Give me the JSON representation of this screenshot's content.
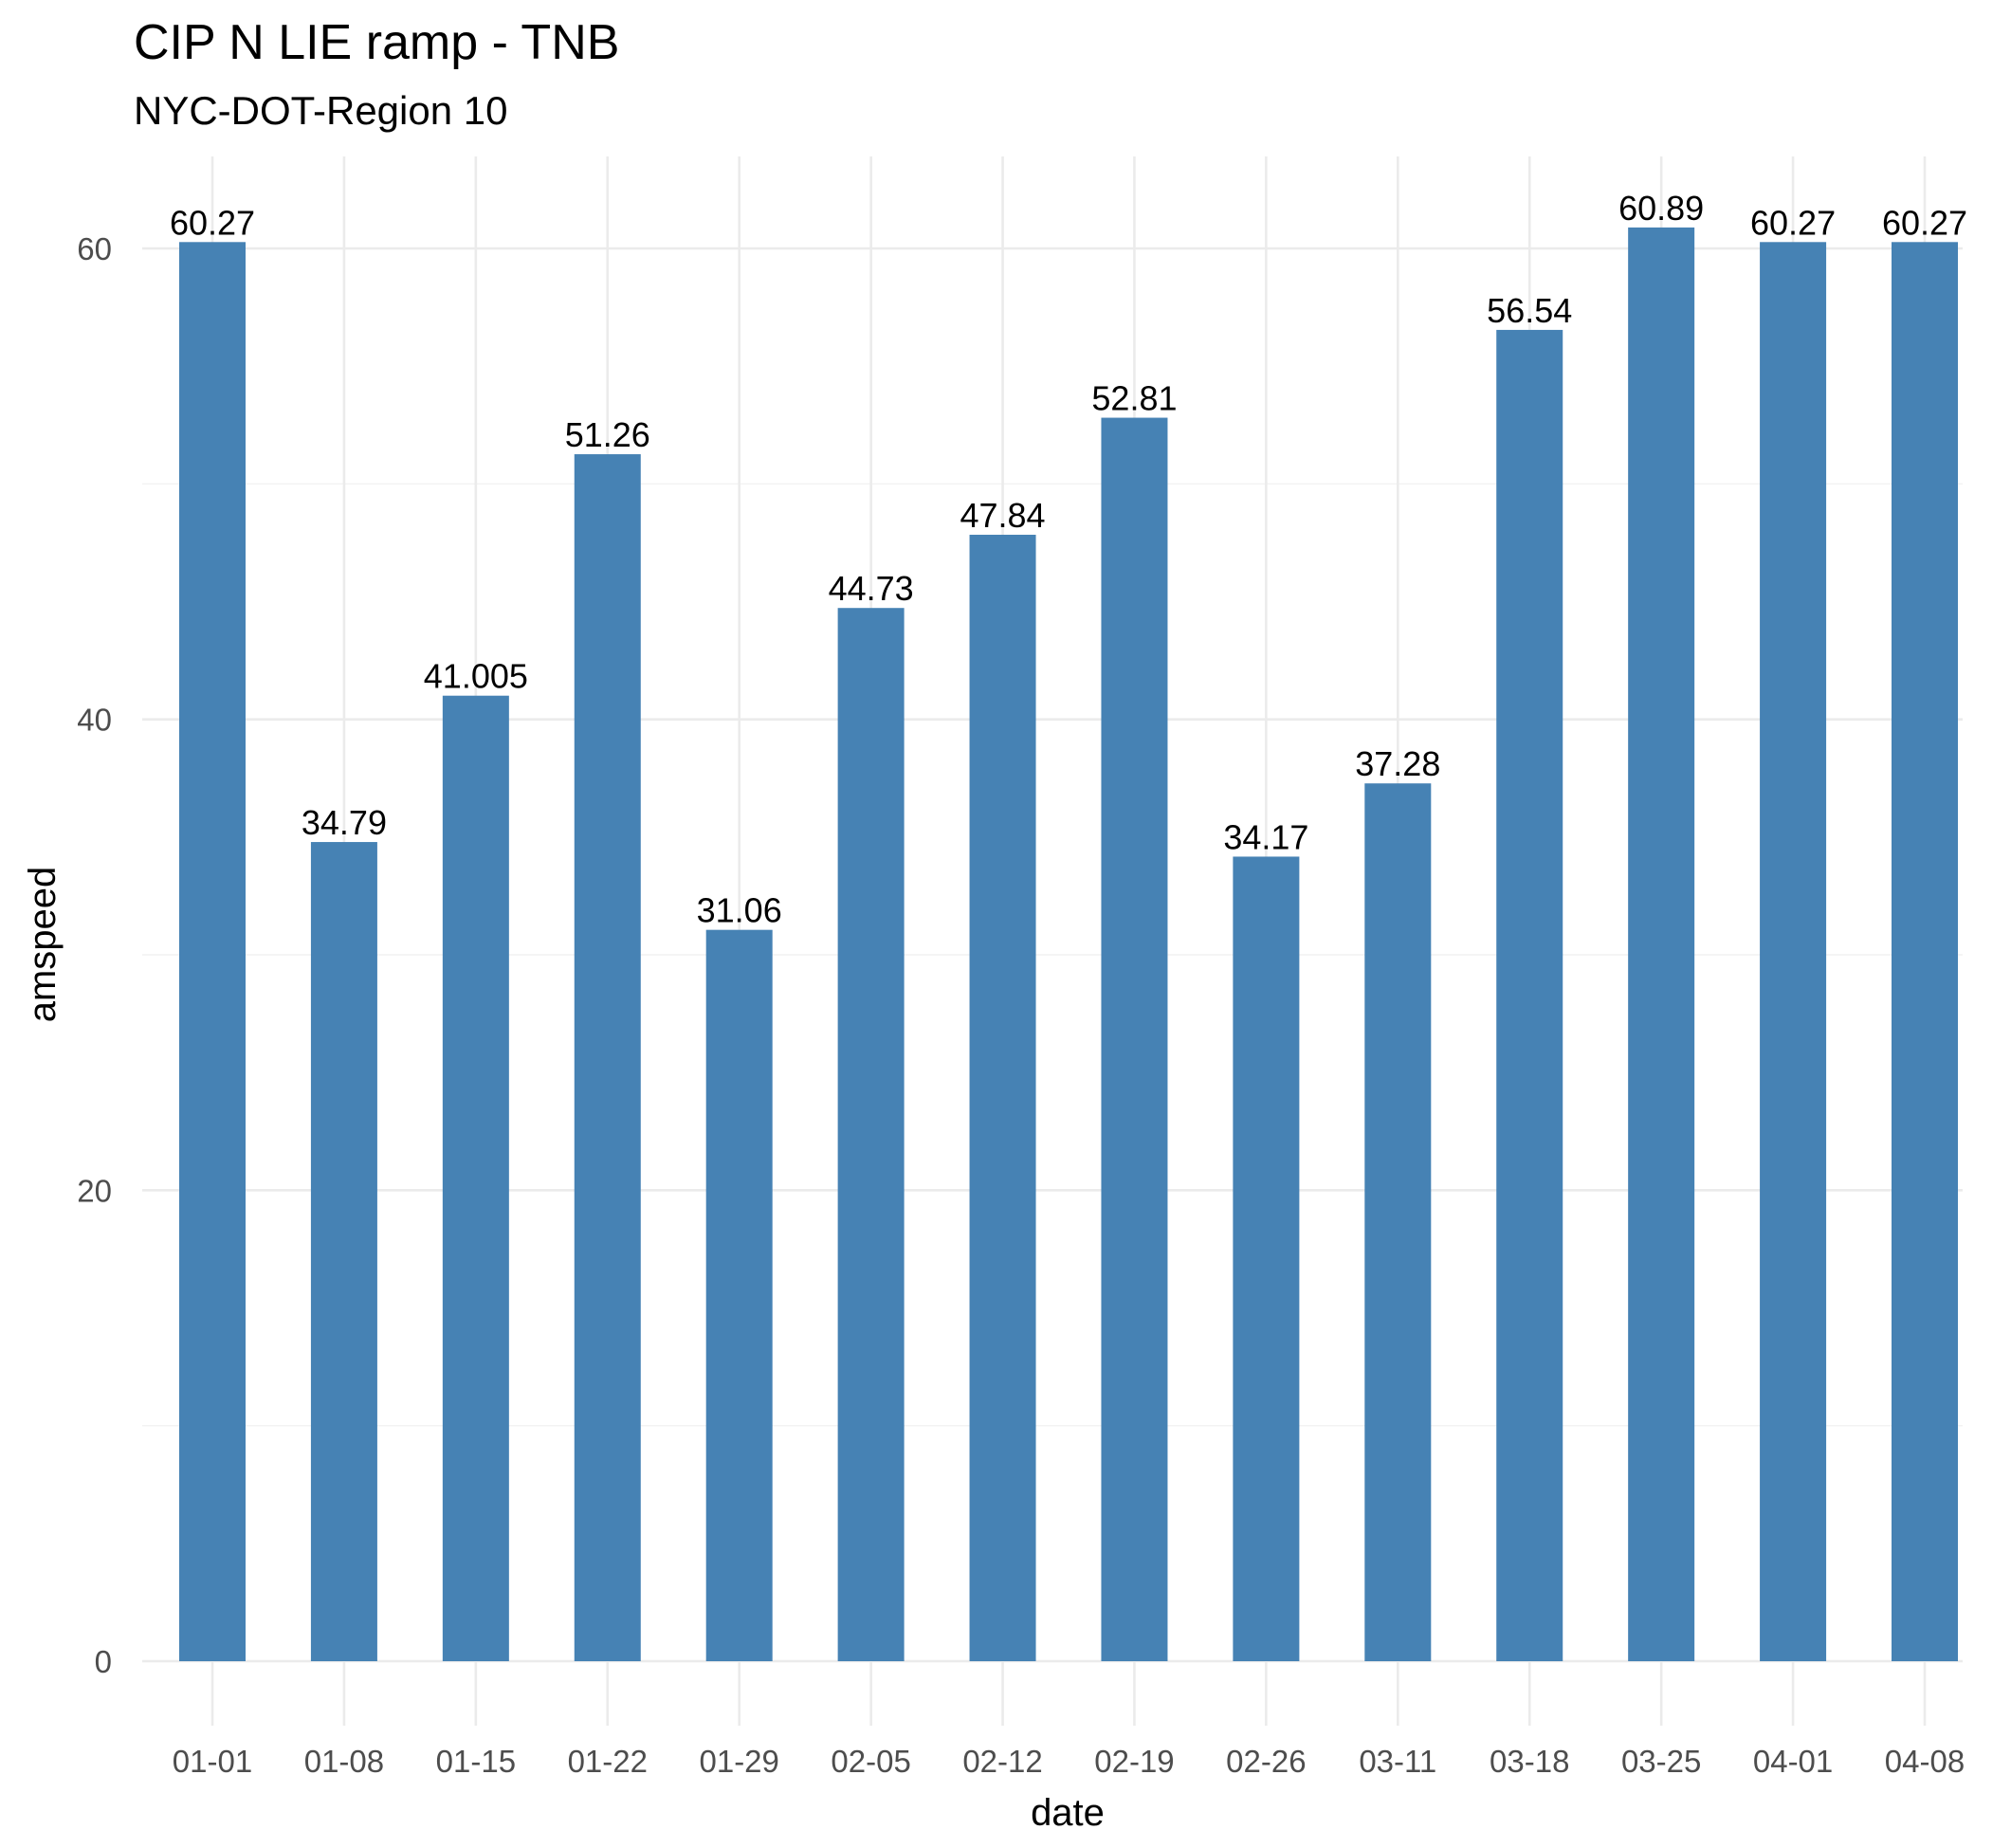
{
  "chart_data": {
    "type": "bar",
    "title": "CIP N LIE ramp - TNB",
    "subtitle": "NYC-DOT-Region 10",
    "xlabel": "date",
    "ylabel": "amspeed",
    "categories": [
      "01-01",
      "01-08",
      "01-15",
      "01-22",
      "01-29",
      "02-05",
      "02-12",
      "02-19",
      "02-26",
      "03-11",
      "03-18",
      "03-25",
      "04-01",
      "04-08"
    ],
    "values": [
      60.27,
      34.79,
      41.005,
      51.26,
      31.06,
      44.73,
      47.84,
      52.81,
      34.17,
      37.28,
      56.54,
      60.89,
      60.27,
      60.27
    ],
    "data_labels": [
      "60.27",
      "34.79",
      "41.005",
      "51.26",
      "31.06",
      "44.73",
      "47.84",
      "52.81",
      "34.17",
      "37.28",
      "56.54",
      "60.89",
      "60.27",
      "60.27"
    ],
    "y_ticks": [
      0,
      20,
      40,
      60
    ],
    "ylim": [
      0,
      64
    ],
    "grid": true,
    "legend": "none",
    "colors": {
      "bar": "#4682B4",
      "background": "#FFFFFF",
      "grid_major": "#EBEBEB",
      "grid_minor": "#F2F2F2"
    }
  }
}
